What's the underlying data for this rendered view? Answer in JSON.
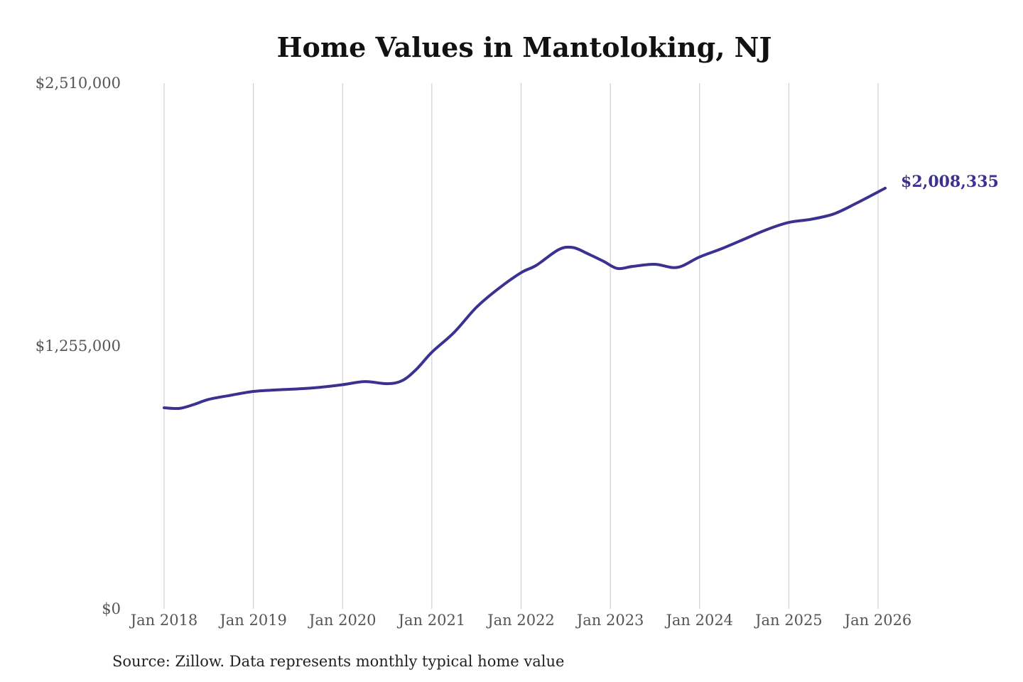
{
  "chart_data": {
    "type": "line",
    "title": "Home Values in Mantoloking, NJ",
    "source": "Source: Zillow. Data represents monthly typical home value",
    "ylim": [
      0,
      2510000
    ],
    "yticks": [
      {
        "value": 0,
        "label": "$0"
      },
      {
        "value": 1255000,
        "label": "$1,255,000"
      },
      {
        "value": 2510000,
        "label": "$2,510,000"
      }
    ],
    "xticks": [
      {
        "value": 2018.0,
        "label": "Jan 2018"
      },
      {
        "value": 2019.0,
        "label": "Jan 2019"
      },
      {
        "value": 2020.0,
        "label": "Jan 2020"
      },
      {
        "value": 2021.0,
        "label": "Jan 2021"
      },
      {
        "value": 2022.0,
        "label": "Jan 2022"
      },
      {
        "value": 2023.0,
        "label": "Jan 2023"
      },
      {
        "value": 2024.0,
        "label": "Jan 2024"
      },
      {
        "value": 2025.0,
        "label": "Jan 2025"
      },
      {
        "value": 2026.0,
        "label": "Jan 2026"
      }
    ],
    "grid": "vertical",
    "xlim": [
      2018.0,
      2026.1
    ],
    "line_color": "#3a3190",
    "series": [
      {
        "name": "",
        "values": [
          [
            2018.0,
            960000
          ],
          [
            2018.17,
            957000
          ],
          [
            2018.33,
            975000
          ],
          [
            2018.5,
            1000000
          ],
          [
            2018.75,
            1020000
          ],
          [
            2019.0,
            1038000
          ],
          [
            2019.25,
            1045000
          ],
          [
            2019.5,
            1050000
          ],
          [
            2019.75,
            1058000
          ],
          [
            2020.0,
            1070000
          ],
          [
            2020.25,
            1085000
          ],
          [
            2020.5,
            1075000
          ],
          [
            2020.67,
            1090000
          ],
          [
            2020.83,
            1145000
          ],
          [
            2021.0,
            1225000
          ],
          [
            2021.25,
            1320000
          ],
          [
            2021.5,
            1440000
          ],
          [
            2021.75,
            1530000
          ],
          [
            2022.0,
            1605000
          ],
          [
            2022.17,
            1640000
          ],
          [
            2022.42,
            1715000
          ],
          [
            2022.58,
            1725000
          ],
          [
            2022.75,
            1695000
          ],
          [
            2022.92,
            1660000
          ],
          [
            2023.08,
            1625000
          ],
          [
            2023.25,
            1635000
          ],
          [
            2023.5,
            1645000
          ],
          [
            2023.75,
            1630000
          ],
          [
            2024.0,
            1680000
          ],
          [
            2024.25,
            1720000
          ],
          [
            2024.5,
            1765000
          ],
          [
            2024.75,
            1810000
          ],
          [
            2025.0,
            1845000
          ],
          [
            2025.25,
            1860000
          ],
          [
            2025.5,
            1885000
          ],
          [
            2025.75,
            1935000
          ],
          [
            2026.08,
            2008335
          ]
        ]
      }
    ],
    "end_label": "$2,008,335"
  }
}
